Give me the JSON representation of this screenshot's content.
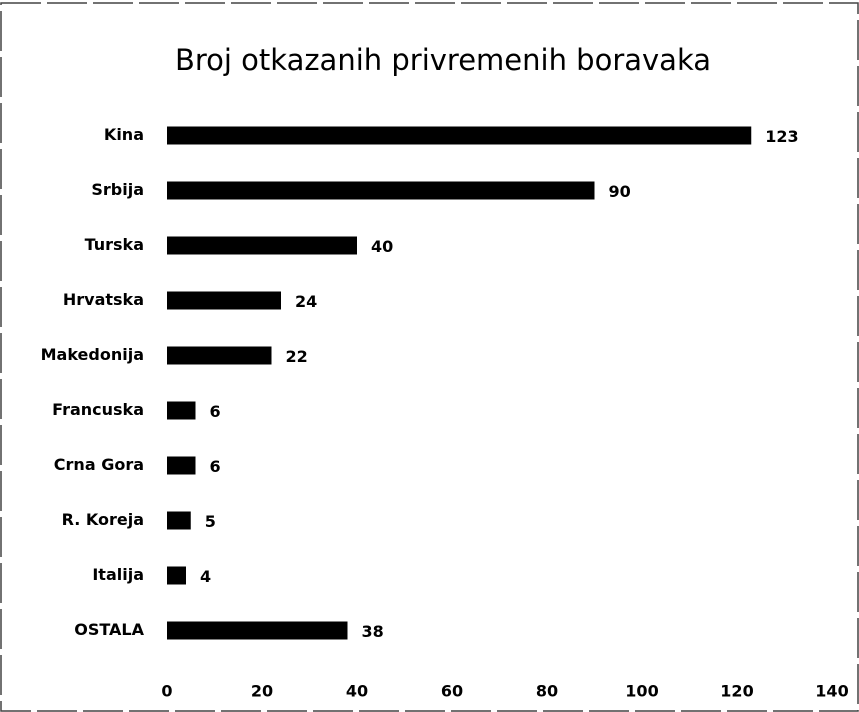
{
  "chart_data": {
    "type": "bar",
    "orientation": "horizontal",
    "title": "Broj otkazanih privremenih boravaka",
    "categories": [
      "Kina",
      "Srbija",
      "Turska",
      "Hrvatska",
      "Makedonija",
      "Francuska",
      "Crna Gora",
      "R. Koreja",
      "Italija",
      "OSTALA"
    ],
    "values": [
      123,
      90,
      40,
      24,
      22,
      6,
      6,
      5,
      4,
      38
    ],
    "color": "#000000",
    "xlim": [
      0,
      140
    ],
    "xticks": [
      0,
      20,
      40,
      60,
      80,
      100,
      120,
      140
    ],
    "grid": false
  }
}
